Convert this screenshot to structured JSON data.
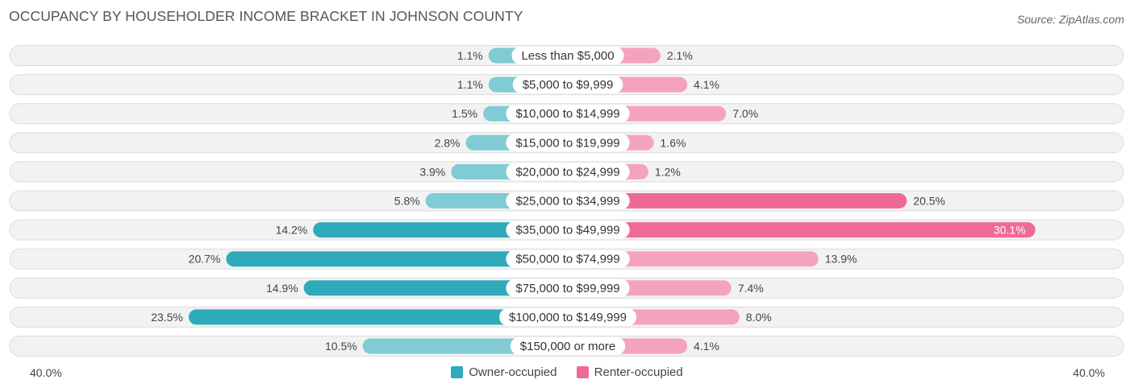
{
  "title": "OCCUPANCY BY HOUSEHOLDER INCOME BRACKET IN JOHNSON COUNTY",
  "source": "Source: ZipAtlas.com",
  "colors": {
    "owner": "#2eaabb",
    "owner_light": "#80cbd4",
    "renter": "#f06a96",
    "renter_light": "#f5a3bd"
  },
  "axis": {
    "left_label": "40.0%",
    "right_label": "40.0%"
  },
  "legend": {
    "owner_label": "Owner-occupied",
    "renter_label": "Renter-occupied"
  },
  "chart_data": {
    "type": "bar",
    "orientation": "horizontal-diverging",
    "title": "OCCUPANCY BY HOUSEHOLDER INCOME BRACKET IN JOHNSON COUNTY",
    "xlim": [
      -40,
      40
    ],
    "categories": [
      "Less than $5,000",
      "$5,000 to $9,999",
      "$10,000 to $14,999",
      "$15,000 to $19,999",
      "$20,000 to $24,999",
      "$25,000 to $34,999",
      "$35,000 to $49,999",
      "$50,000 to $74,999",
      "$75,000 to $99,999",
      "$100,000 to $149,999",
      "$150,000 or more"
    ],
    "series": [
      {
        "name": "Owner-occupied",
        "values": [
          1.1,
          1.1,
          1.5,
          2.8,
          3.9,
          5.8,
          14.2,
          20.7,
          14.9,
          23.5,
          10.5
        ],
        "labels": [
          "1.1%",
          "1.1%",
          "1.5%",
          "2.8%",
          "3.9%",
          "5.8%",
          "14.2%",
          "20.7%",
          "14.9%",
          "23.5%",
          "10.5%"
        ]
      },
      {
        "name": "Renter-occupied",
        "values": [
          2.1,
          4.1,
          7.0,
          1.6,
          1.2,
          20.5,
          30.1,
          13.9,
          7.4,
          8.0,
          4.1
        ],
        "labels": [
          "2.1%",
          "4.1%",
          "7.0%",
          "1.6%",
          "1.2%",
          "20.5%",
          "30.1%",
          "13.9%",
          "7.4%",
          "8.0%",
          "4.1%"
        ]
      }
    ]
  }
}
